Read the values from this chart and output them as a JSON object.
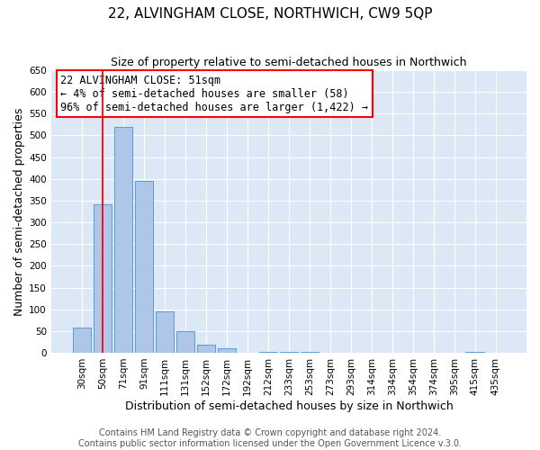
{
  "title": "22, ALVINGHAM CLOSE, NORTHWICH, CW9 5QP",
  "subtitle": "Size of property relative to semi-detached houses in Northwich",
  "xlabel": "Distribution of semi-detached houses by size in Northwich",
  "ylabel": "Number of semi-detached properties",
  "bar_labels": [
    "30sqm",
    "50sqm",
    "71sqm",
    "91sqm",
    "111sqm",
    "131sqm",
    "152sqm",
    "172sqm",
    "192sqm",
    "212sqm",
    "233sqm",
    "253sqm",
    "273sqm",
    "293sqm",
    "314sqm",
    "334sqm",
    "354sqm",
    "374sqm",
    "395sqm",
    "415sqm",
    "435sqm"
  ],
  "bar_values": [
    57,
    342,
    519,
    396,
    95,
    50,
    18,
    10,
    0,
    2,
    2,
    3,
    0,
    0,
    0,
    0,
    0,
    0,
    0,
    2,
    0
  ],
  "bar_color": "#aec6e8",
  "bar_edge_color": "#5b9bd5",
  "annotation_box_text": "22 ALVINGHAM CLOSE: 51sqm\n← 4% of semi-detached houses are smaller (58)\n96% of semi-detached houses are larger (1,422) →",
  "annotation_box_color": "white",
  "annotation_box_edge_color": "red",
  "vline_color": "red",
  "vline_x": 1,
  "ylim": [
    0,
    650
  ],
  "yticks": [
    0,
    50,
    100,
    150,
    200,
    250,
    300,
    350,
    400,
    450,
    500,
    550,
    600,
    650
  ],
  "footer_text": "Contains HM Land Registry data © Crown copyright and database right 2024.\nContains public sector information licensed under the Open Government Licence v.3.0.",
  "bg_color": "#dce8f5",
  "grid_color": "white",
  "title_fontsize": 11,
  "subtitle_fontsize": 9,
  "axis_label_fontsize": 9,
  "tick_fontsize": 7.5,
  "annotation_fontsize": 8.5,
  "footer_fontsize": 7
}
